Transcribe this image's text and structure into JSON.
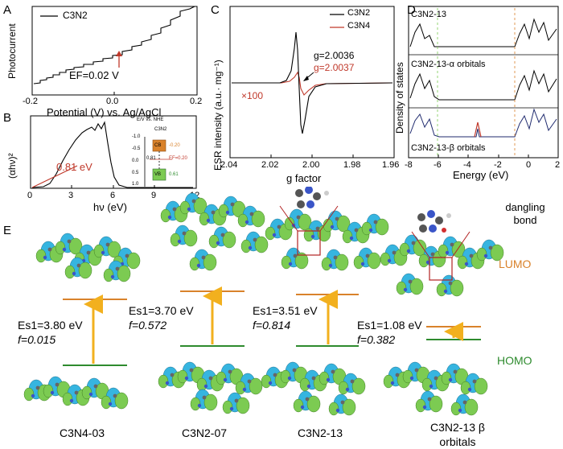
{
  "panels": {
    "A": {
      "label": "A",
      "legend": "C3N2",
      "ylabel": "Photocurrent",
      "xlabel": "Potential (V) vs. Ag/AgCl",
      "xticks": [
        "-0.2",
        "0.0",
        "0.2"
      ],
      "annotation": "EF=0.02 V"
    },
    "B": {
      "label": "B",
      "ylabel": "(αhν)²",
      "xlabel": "hν (eV)",
      "xticks": [
        "0",
        "3",
        "6",
        "9",
        "12"
      ],
      "gap_label": "0.81 eV",
      "inset": {
        "title": "E/V vs. NHE",
        "material": "C3N2",
        "ticks": [
          "-1.0",
          "-0.5",
          "0.0",
          "0.5",
          "1.0"
        ],
        "cb": "CB",
        "cb_val": "-0.20",
        "ef": "EF=0.20",
        "vb": "VB",
        "vb_val": "0.61",
        "gap": "0.81"
      }
    },
    "C": {
      "label": "C",
      "ylabel": "ESR intensity (a.u.· mg⁻¹)",
      "xlabel": "g factor",
      "xticks": [
        "2.04",
        "2.02",
        "2.00",
        "1.98",
        "1.96"
      ],
      "legend": [
        "C3N2",
        "C3N4"
      ],
      "g1": "g=2.0036",
      "g2": "g=2.0037",
      "scale": "×100"
    },
    "D": {
      "label": "D",
      "ylabel": "Density of states",
      "xlabel": "Energy (eV)",
      "xticks": [
        "-8",
        "-6",
        "-4",
        "-2",
        "0",
        "2"
      ],
      "sub1": "C3N2-13",
      "sub2": "C3N2-13-α orbitals",
      "sub3": "C3N2-13-β orbitals"
    },
    "E": {
      "label": "E",
      "lumo": "LUMO",
      "homo": "HOMO",
      "dangling": "dangling bond",
      "molecules": [
        {
          "name": "C3N4-03",
          "es1": "Es1=3.80 eV",
          "f": "f=0.015"
        },
        {
          "name": "C3N2-07",
          "es1": "Es1=3.70 eV",
          "f": "f=0.572"
        },
        {
          "name": "C3N2-13",
          "es1": "Es1=3.51 eV",
          "f": "f=0.814"
        },
        {
          "name": "C3N2-13 β orbitals",
          "es1": "Es1=1.08 eV",
          "f": "f=0.382"
        }
      ]
    }
  },
  "colors": {
    "black": "#000000",
    "red": "#c0392b",
    "orange": "#d9822b",
    "green": "#2e8b2e",
    "arrow": "#f2b01e",
    "lobe_blue": "#36b5e0",
    "lobe_green": "#7ccb52"
  }
}
